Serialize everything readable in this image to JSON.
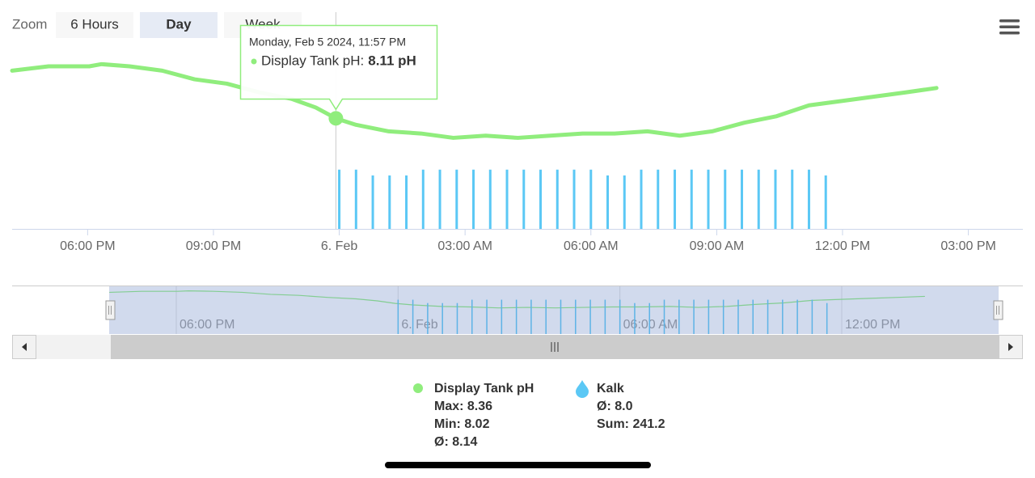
{
  "zoom": {
    "label": "Zoom",
    "buttons": [
      "6 Hours",
      "Day",
      "Week"
    ],
    "selected": 1
  },
  "tooltip": {
    "date": "Monday, Feb 5 2024, 11:57 PM",
    "label": "Display Tank pH:",
    "value": "8.11 pH",
    "x": 23.92,
    "y": 8.11
  },
  "chart_data": {
    "type": "line",
    "xlim": [
      16.2,
      40.3
    ],
    "xticks": [
      {
        "value": 18,
        "label": "06:00 PM"
      },
      {
        "value": 21,
        "label": "09:00 PM"
      },
      {
        "value": 24,
        "label": "6. Feb"
      },
      {
        "value": 27,
        "label": "03:00 AM"
      },
      {
        "value": 30,
        "label": "06:00 AM"
      },
      {
        "value": 33,
        "label": "09:00 AM"
      },
      {
        "value": 36,
        "label": "12:00 PM"
      },
      {
        "value": 39,
        "label": "03:00 PM"
      }
    ],
    "ylim": [
      7.6,
      8.6
    ],
    "y2lim": [
      0,
      30
    ],
    "series": [
      {
        "name": "Display Tank pH",
        "type": "line",
        "color": "#90ed7d",
        "x": [
          16.2,
          17.07,
          18.04,
          18.33,
          19.0,
          19.78,
          20.55,
          21.32,
          22.09,
          22.86,
          23.44,
          23.92,
          24.4,
          25.18,
          25.95,
          26.72,
          27.49,
          28.26,
          29.03,
          29.8,
          30.57,
          31.35,
          32.12,
          32.89,
          33.66,
          34.43,
          35.2,
          35.98,
          36.75,
          37.52,
          38.24
        ],
        "values": [
          8.33,
          8.35,
          8.35,
          8.36,
          8.35,
          8.33,
          8.29,
          8.27,
          8.23,
          8.2,
          8.16,
          8.11,
          8.08,
          8.05,
          8.04,
          8.02,
          8.03,
          8.02,
          8.03,
          8.04,
          8.04,
          8.05,
          8.03,
          8.05,
          8.09,
          8.12,
          8.17,
          8.19,
          8.21,
          8.23,
          8.25
        ]
      },
      {
        "name": "Kalk",
        "type": "column",
        "color": "#5bc8f5",
        "axis": "y2",
        "x": [
          24.0,
          24.4,
          24.8,
          25.2,
          25.6,
          26.0,
          26.4,
          26.8,
          27.2,
          27.6,
          28.0,
          28.4,
          28.8,
          29.2,
          29.6,
          30.0,
          30.4,
          30.8,
          31.2,
          31.6,
          32.0,
          32.4,
          32.8,
          33.2,
          33.6,
          34.0,
          34.4,
          34.8,
          35.2,
          35.6
        ],
        "values": [
          8.2,
          8.2,
          7.4,
          7.4,
          7.4,
          8.2,
          8.2,
          8.2,
          8.2,
          8.2,
          8.2,
          8.2,
          8.2,
          8.2,
          8.2,
          8.2,
          7.4,
          7.4,
          8.2,
          8.2,
          8.2,
          8.2,
          8.2,
          8.2,
          8.2,
          8.2,
          8.2,
          8.2,
          8.2,
          7.4
        ]
      }
    ]
  },
  "navigator": {
    "xlim": [
      13.56,
      40.9
    ],
    "ylim": [
      7.5,
      8.45
    ],
    "y2lim": [
      0,
      11.4
    ],
    "xticks": [
      {
        "value": 18,
        "label": "06:00 PM"
      },
      {
        "value": 24,
        "label": "6. Feb"
      },
      {
        "value": 30,
        "label": "06:00 AM"
      },
      {
        "value": 36,
        "label": "12:00 PM"
      }
    ]
  },
  "legend_stats": [
    [
      "Max: 8.36",
      "Min: 8.02",
      "Ø: 8.14"
    ],
    [
      "Ø: 8.0",
      "Sum: 241.2"
    ]
  ]
}
